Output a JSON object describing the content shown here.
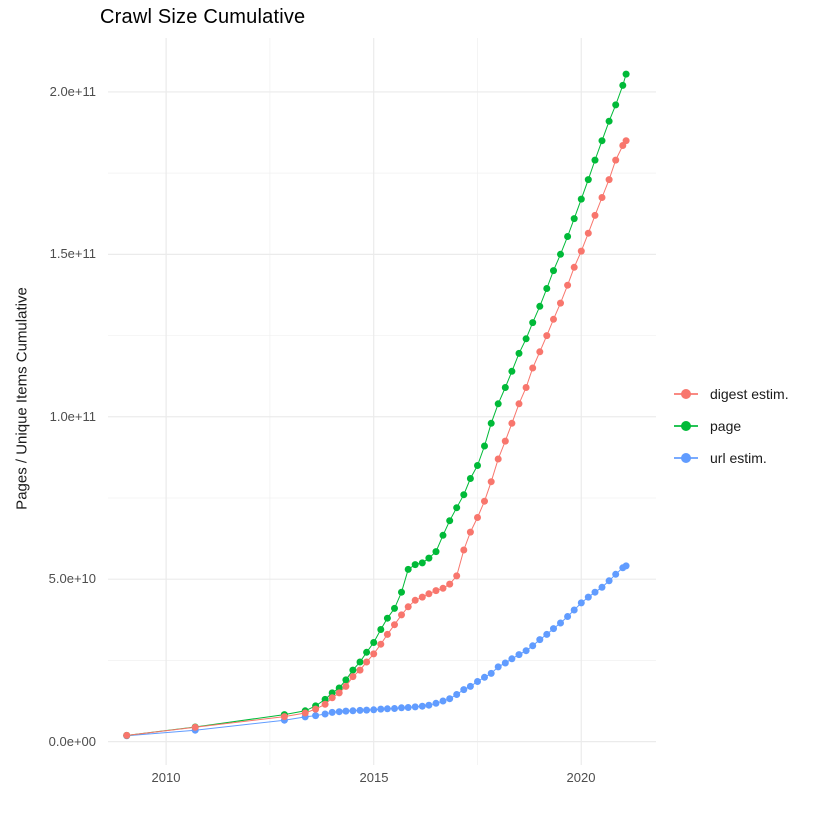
{
  "title": "Crawl Size Cumulative",
  "axes": {
    "y_label": "Pages / Unique Items Cumulative",
    "y_tick_labels": [
      "0.0e+00",
      "5.0e+10",
      "1.0e+11",
      "1.5e+11",
      "2.0e+11"
    ],
    "x_tick_labels": [
      "2010",
      "2015",
      "2020"
    ]
  },
  "legend": {
    "position": "right",
    "items": [
      {
        "label": "digest estim.",
        "color": "#F8766D"
      },
      {
        "label": "page",
        "color": "#00BA38"
      },
      {
        "label": "url estim.",
        "color": "#619CFF"
      }
    ]
  },
  "style": {
    "background": "#ffffff",
    "grid_major_color": "#EBEBEB",
    "grid_minor_color": "#F0F0F0",
    "tick_text_color": "#4d4d4d",
    "point_radius": 3.5
  },
  "chart_data": {
    "type": "scatter",
    "title": "Crawl Size Cumulative",
    "xlabel": "",
    "ylabel": "Pages / Unique Items Cumulative",
    "xlim": [
      2008.6,
      2021.8
    ],
    "ylim": [
      -7200000000.0,
      216600000000.0
    ],
    "x_major_ticks": [
      2010,
      2015,
      2020
    ],
    "x_minor_ticks": [
      2012.5,
      2017.5
    ],
    "y_major_ticks": [
      0,
      50000000000.0,
      100000000000.0,
      150000000000.0,
      200000000000.0
    ],
    "y_minor_ticks": [
      25000000000.0,
      75000000000.0,
      125000000000.0,
      175000000000.0
    ],
    "grid": true,
    "legend_position": "right",
    "series": [
      {
        "name": "url estim.",
        "color": "#619CFF",
        "points": [
          [
            2009.05,
            1800000000.0
          ],
          [
            2010.7,
            3500000000.0
          ],
          [
            2012.85,
            6600000000.0
          ],
          [
            2013.35,
            7600000000.0
          ],
          [
            2013.6,
            8000000000.0
          ],
          [
            2013.83,
            8500000000.0
          ],
          [
            2014.0,
            9000000000.0
          ],
          [
            2014.17,
            9200000000.0
          ],
          [
            2014.33,
            9400000000.0
          ],
          [
            2014.5,
            9500000000.0
          ],
          [
            2014.67,
            9600000000.0
          ],
          [
            2014.83,
            9700000000.0
          ],
          [
            2015.0,
            9800000000.0
          ],
          [
            2015.17,
            10000000000.0
          ],
          [
            2015.33,
            10100000000.0
          ],
          [
            2015.5,
            10200000000.0
          ],
          [
            2015.67,
            10400000000.0
          ],
          [
            2015.83,
            10500000000.0
          ],
          [
            2016.0,
            10700000000.0
          ],
          [
            2016.17,
            10900000000.0
          ],
          [
            2016.33,
            11200000000.0
          ],
          [
            2016.5,
            11800000000.0
          ],
          [
            2016.67,
            12500000000.0
          ],
          [
            2016.83,
            13200000000.0
          ],
          [
            2017.0,
            14500000000.0
          ],
          [
            2017.17,
            16000000000.0
          ],
          [
            2017.33,
            17000000000.0
          ],
          [
            2017.5,
            18500000000.0
          ],
          [
            2017.67,
            19800000000.0
          ],
          [
            2017.83,
            21000000000.0
          ],
          [
            2018.0,
            23000000000.0
          ],
          [
            2018.17,
            24200000000.0
          ],
          [
            2018.33,
            25500000000.0
          ],
          [
            2018.5,
            26800000000.0
          ],
          [
            2018.67,
            28000000000.0
          ],
          [
            2018.83,
            29500000000.0
          ],
          [
            2019.0,
            31400000000.0
          ],
          [
            2019.17,
            33000000000.0
          ],
          [
            2019.33,
            34800000000.0
          ],
          [
            2019.5,
            36500000000.0
          ],
          [
            2019.67,
            38500000000.0
          ],
          [
            2019.83,
            40500000000.0
          ],
          [
            2020.0,
            42700000000.0
          ],
          [
            2020.17,
            44500000000.0
          ],
          [
            2020.33,
            46000000000.0
          ],
          [
            2020.5,
            47500000000.0
          ],
          [
            2020.67,
            49500000000.0
          ],
          [
            2020.83,
            51500000000.0
          ],
          [
            2021.0,
            53500000000.0
          ],
          [
            2021.08,
            54100000000.0
          ]
        ]
      },
      {
        "name": "page",
        "color": "#00BA38",
        "points": [
          [
            2009.05,
            1900000000.0
          ],
          [
            2010.7,
            4500000000.0
          ],
          [
            2012.85,
            8300000000.0
          ],
          [
            2013.35,
            9500000000.0
          ],
          [
            2013.6,
            11000000000.0
          ],
          [
            2013.83,
            13000000000.0
          ],
          [
            2014.0,
            15000000000.0
          ],
          [
            2014.17,
            16500000000.0
          ],
          [
            2014.33,
            19000000000.0
          ],
          [
            2014.5,
            22000000000.0
          ],
          [
            2014.67,
            24500000000.0
          ],
          [
            2014.83,
            27500000000.0
          ],
          [
            2015.0,
            30500000000.0
          ],
          [
            2015.17,
            34500000000.0
          ],
          [
            2015.33,
            38000000000.0
          ],
          [
            2015.5,
            41000000000.0
          ],
          [
            2015.67,
            46000000000.0
          ],
          [
            2015.83,
            53000000000.0
          ],
          [
            2016.0,
            54500000000.0
          ],
          [
            2016.17,
            55000000000.0
          ],
          [
            2016.33,
            56500000000.0
          ],
          [
            2016.5,
            58500000000.0
          ],
          [
            2016.67,
            63500000000.0
          ],
          [
            2016.83,
            68000000000.0
          ],
          [
            2017.0,
            72000000000.0
          ],
          [
            2017.17,
            76000000000.0
          ],
          [
            2017.33,
            81000000000.0
          ],
          [
            2017.5,
            85000000000.0
          ],
          [
            2017.67,
            91000000000.0
          ],
          [
            2017.83,
            98000000000.0
          ],
          [
            2018.0,
            104000000000.0
          ],
          [
            2018.17,
            109000000000.0
          ],
          [
            2018.33,
            114000000000.0
          ],
          [
            2018.5,
            119500000000.0
          ],
          [
            2018.67,
            124000000000.0
          ],
          [
            2018.83,
            129000000000.0
          ],
          [
            2019.0,
            134000000000.0
          ],
          [
            2019.17,
            139500000000.0
          ],
          [
            2019.33,
            145000000000.0
          ],
          [
            2019.5,
            150000000000.0
          ],
          [
            2019.67,
            155500000000.0
          ],
          [
            2019.83,
            161000000000.0
          ],
          [
            2020.0,
            167000000000.0
          ],
          [
            2020.17,
            173000000000.0
          ],
          [
            2020.33,
            179000000000.0
          ],
          [
            2020.5,
            185000000000.0
          ],
          [
            2020.67,
            191000000000.0
          ],
          [
            2020.83,
            196000000000.0
          ],
          [
            2021.0,
            202000000000.0
          ],
          [
            2021.08,
            205500000000.0
          ]
        ]
      },
      {
        "name": "digest estim.",
        "color": "#F8766D",
        "points": [
          [
            2009.05,
            1900000000.0
          ],
          [
            2010.7,
            4400000000.0
          ],
          [
            2012.85,
            7700000000.0
          ],
          [
            2013.35,
            8800000000.0
          ],
          [
            2013.6,
            10000000000.0
          ],
          [
            2013.83,
            11500000000.0
          ],
          [
            2014.0,
            13500000000.0
          ],
          [
            2014.17,
            15000000000.0
          ],
          [
            2014.33,
            17000000000.0
          ],
          [
            2014.5,
            20000000000.0
          ],
          [
            2014.67,
            22000000000.0
          ],
          [
            2014.83,
            24500000000.0
          ],
          [
            2015.0,
            27000000000.0
          ],
          [
            2015.17,
            30000000000.0
          ],
          [
            2015.33,
            33000000000.0
          ],
          [
            2015.5,
            36000000000.0
          ],
          [
            2015.67,
            39000000000.0
          ],
          [
            2015.83,
            41500000000.0
          ],
          [
            2016.0,
            43500000000.0
          ],
          [
            2016.17,
            44500000000.0
          ],
          [
            2016.33,
            45500000000.0
          ],
          [
            2016.5,
            46500000000.0
          ],
          [
            2016.67,
            47200000000.0
          ],
          [
            2016.83,
            48500000000.0
          ],
          [
            2017.0,
            51000000000.0
          ],
          [
            2017.17,
            59000000000.0
          ],
          [
            2017.33,
            64500000000.0
          ],
          [
            2017.5,
            69000000000.0
          ],
          [
            2017.67,
            74000000000.0
          ],
          [
            2017.83,
            80000000000.0
          ],
          [
            2018.0,
            87000000000.0
          ],
          [
            2018.17,
            92500000000.0
          ],
          [
            2018.33,
            98000000000.0
          ],
          [
            2018.5,
            104000000000.0
          ],
          [
            2018.67,
            109000000000.0
          ],
          [
            2018.83,
            115000000000.0
          ],
          [
            2019.0,
            120000000000.0
          ],
          [
            2019.17,
            125000000000.0
          ],
          [
            2019.33,
            130000000000.0
          ],
          [
            2019.5,
            135000000000.0
          ],
          [
            2019.67,
            140500000000.0
          ],
          [
            2019.83,
            146000000000.0
          ],
          [
            2020.0,
            151000000000.0
          ],
          [
            2020.17,
            156500000000.0
          ],
          [
            2020.33,
            162000000000.0
          ],
          [
            2020.5,
            167500000000.0
          ],
          [
            2020.67,
            173000000000.0
          ],
          [
            2020.83,
            179000000000.0
          ],
          [
            2021.0,
            183500000000.0
          ],
          [
            2021.08,
            185000000000.0
          ]
        ]
      }
    ]
  }
}
